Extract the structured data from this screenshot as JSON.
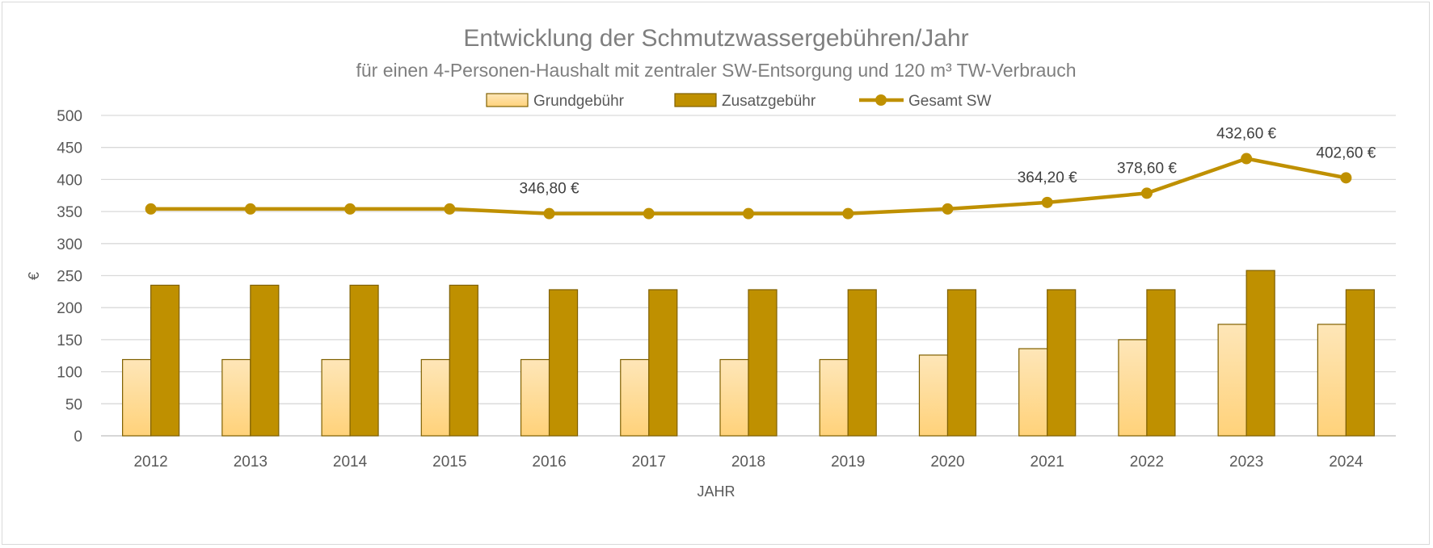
{
  "chart_data": {
    "type": "bar",
    "title": "Entwicklung der Schmutzwassergebühren/Jahr",
    "subtitle": "für einen 4-Personen-Haushalt mit zentraler SW-Entsorgung und 120 m³ TW-Verbrauch",
    "xlabel": "JAHR",
    "ylabel": "€",
    "ylim": [
      0,
      500
    ],
    "yticks": [
      0,
      50,
      100,
      150,
      200,
      250,
      300,
      350,
      400,
      450,
      500
    ],
    "categories": [
      "2012",
      "2013",
      "2014",
      "2015",
      "2016",
      "2017",
      "2018",
      "2019",
      "2020",
      "2021",
      "2022",
      "2023",
      "2024"
    ],
    "grid": true,
    "legend_position": "top",
    "series": [
      {
        "name": "Grundgebühr",
        "type": "bar",
        "color": "#ffd58a",
        "values": [
          119,
          119,
          119,
          119,
          119,
          119,
          119,
          119,
          126,
          136,
          150,
          174,
          174
        ]
      },
      {
        "name": "Zusatzgebühr",
        "type": "bar",
        "color": "#bf9000",
        "values": [
          235,
          235,
          235,
          235,
          228,
          228,
          228,
          228,
          228,
          228,
          228,
          258,
          228
        ]
      },
      {
        "name": "Gesamt SW",
        "type": "line",
        "color": "#bf9000",
        "values": [
          354,
          354,
          354,
          354,
          346.8,
          346.8,
          346.8,
          346.8,
          354,
          364.2,
          378.6,
          432.6,
          402.6
        ]
      }
    ],
    "data_labels": [
      {
        "index": 4,
        "text": "346,80 €"
      },
      {
        "index": 9,
        "text": "364,20 €"
      },
      {
        "index": 10,
        "text": "378,60 €"
      },
      {
        "index": 11,
        "text": "432,60 €"
      },
      {
        "index": 12,
        "text": "402,60 €"
      }
    ]
  }
}
